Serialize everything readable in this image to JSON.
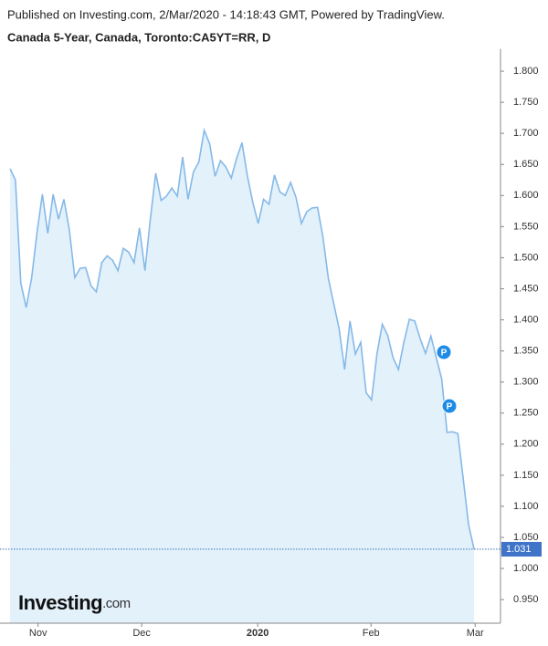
{
  "header": {
    "published": "Published on Investing.com, 2/Mar/2020 - 14:18:43 GMT, Powered by TradingView."
  },
  "logo": {
    "main": "Investing",
    "suffix": ".com"
  },
  "chart_data": {
    "type": "area",
    "title": "Canada 5-Year, Canada, Toronto:CA5YT=RR, D",
    "color": "#86b9e8",
    "fill": "#e3f1fb",
    "values": [
      1.643,
      1.625,
      1.459,
      1.42,
      1.467,
      1.54,
      1.602,
      1.539,
      1.602,
      1.562,
      1.594,
      1.545,
      1.468,
      1.483,
      1.484,
      1.455,
      1.445,
      1.492,
      1.503,
      1.496,
      1.479,
      1.515,
      1.509,
      1.492,
      1.548,
      1.479,
      1.562,
      1.636,
      1.592,
      1.599,
      1.612,
      1.599,
      1.662,
      1.594,
      1.638,
      1.654,
      1.705,
      1.683,
      1.631,
      1.656,
      1.646,
      1.628,
      1.66,
      1.685,
      1.631,
      1.589,
      1.555,
      1.594,
      1.586,
      1.633,
      1.606,
      1.6,
      1.621,
      1.597,
      1.555,
      1.574,
      1.58,
      1.581,
      1.533,
      1.467,
      1.426,
      1.386,
      1.32,
      1.398,
      1.345,
      1.364,
      1.283,
      1.271,
      1.345,
      1.393,
      1.375,
      1.339,
      1.32,
      1.364,
      1.401,
      1.398,
      1.37,
      1.346,
      1.374,
      1.339,
      1.305,
      1.219,
      1.22,
      1.217,
      1.144,
      1.07,
      1.031
    ],
    "xlim": [
      -0.5,
      90.9
    ],
    "xticks": [
      {
        "value": 5.2,
        "label": "Nov"
      },
      {
        "value": 24.4,
        "label": "Dec"
      },
      {
        "value": 45.9,
        "label": "2020"
      },
      {
        "value": 66.9,
        "label": "Feb"
      },
      {
        "value": 86.2,
        "label": "Mar"
      }
    ],
    "ylim": [
      0.912,
      1.83
    ],
    "yticks": [
      {
        "value": 0.95,
        "label": "0.950"
      },
      {
        "value": 1.0,
        "label": "1.000"
      },
      {
        "value": 1.05,
        "label": "1.050"
      },
      {
        "value": 1.1,
        "label": "1.100"
      },
      {
        "value": 1.15,
        "label": "1.150"
      },
      {
        "value": 1.2,
        "label": "1.200"
      },
      {
        "value": 1.25,
        "label": "1.250"
      },
      {
        "value": 1.3,
        "label": "1.300"
      },
      {
        "value": 1.35,
        "label": "1.350"
      },
      {
        "value": 1.4,
        "label": "1.400"
      },
      {
        "value": 1.45,
        "label": "1.450"
      },
      {
        "value": 1.5,
        "label": "1.500"
      },
      {
        "value": 1.55,
        "label": "1.550"
      },
      {
        "value": 1.6,
        "label": "1.600"
      },
      {
        "value": 1.65,
        "label": "1.650"
      },
      {
        "value": 1.7,
        "label": "1.700"
      },
      {
        "value": 1.75,
        "label": "1.750"
      },
      {
        "value": 1.8,
        "label": "1.800"
      }
    ],
    "annotations": [
      {
        "label": "P"
      },
      {
        "label": "P"
      }
    ]
  }
}
